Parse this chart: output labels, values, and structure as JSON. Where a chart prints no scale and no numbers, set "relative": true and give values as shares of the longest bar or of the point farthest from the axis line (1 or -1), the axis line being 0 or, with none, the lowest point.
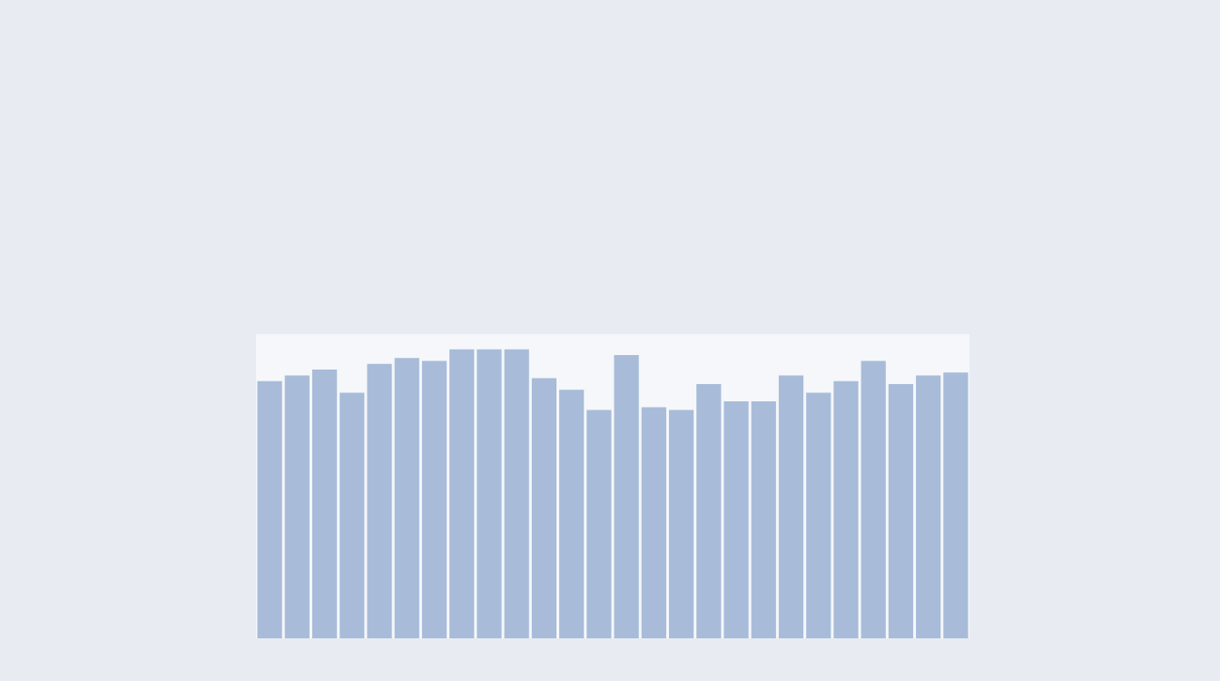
{
  "chart_data": {
    "type": "bar",
    "relative": true,
    "color": "#a8bcd9",
    "categories": [
      null,
      null,
      null,
      null,
      null,
      null,
      null,
      null,
      null,
      null,
      null,
      null,
      null,
      null,
      null,
      null,
      null,
      null,
      null,
      null,
      null,
      null,
      null,
      null,
      null,
      null
    ],
    "values": [
      0.89,
      0.91,
      0.93,
      0.85,
      0.95,
      0.97,
      0.96,
      1.0,
      1.0,
      1.0,
      0.9,
      0.86,
      0.79,
      0.98,
      0.8,
      0.79,
      0.88,
      0.82,
      0.82,
      0.91,
      0.85,
      0.89,
      0.96,
      0.88,
      0.91,
      0.92
    ]
  }
}
